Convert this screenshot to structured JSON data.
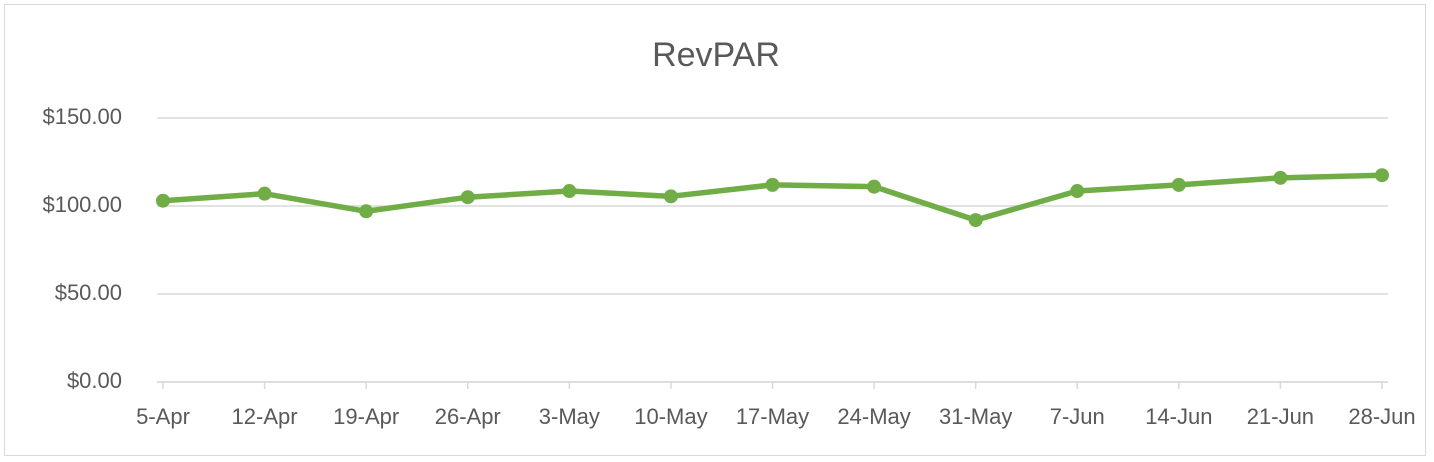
{
  "chart_data": {
    "type": "line",
    "title": "RevPAR",
    "categories": [
      "5-Apr",
      "12-Apr",
      "19-Apr",
      "26-Apr",
      "3-May",
      "10-May",
      "17-May",
      "24-May",
      "31-May",
      "7-Jun",
      "14-Jun",
      "21-Jun",
      "28-Jun"
    ],
    "values": [
      103,
      107,
      97,
      105,
      108.5,
      105.5,
      112,
      111,
      92,
      108.5,
      112,
      116,
      117.5
    ],
    "color": "#70ad47",
    "ylim": [
      0,
      150
    ],
    "yticks": [
      {
        "value": 0,
        "label": "$0.00"
      },
      {
        "value": 50,
        "label": "$50.00"
      },
      {
        "value": 100,
        "label": "$100.00"
      },
      {
        "value": 150,
        "label": "$150.00"
      }
    ],
    "grid": true
  }
}
